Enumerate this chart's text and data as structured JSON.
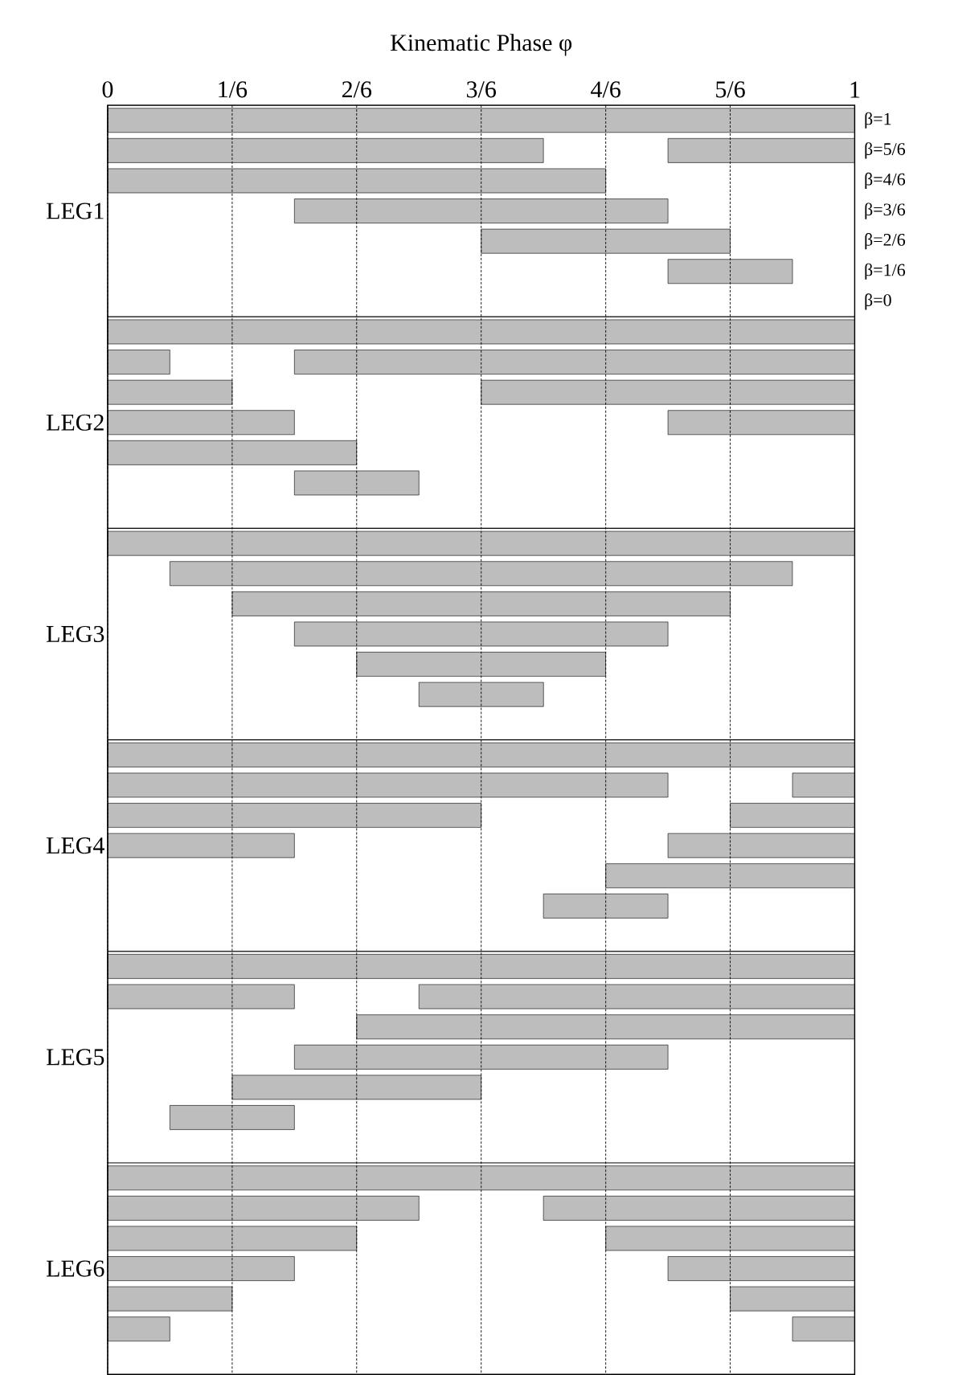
{
  "chart_data": {
    "type": "bar",
    "orientation": "horizontal",
    "xlabel": "Kinematic Phase φ",
    "grid": "x",
    "annotations": [
      "LEG1",
      "LEG2",
      "LEG3",
      "LEG4",
      "LEG5",
      "LEG6"
    ],
    "categories": [
      "β=1",
      "β=5/6",
      "β=4/6",
      "β=3/6",
      "β=2/6",
      "β=1/6",
      "β=0",
      null,
      null,
      null,
      null,
      null,
      null,
      null,
      null,
      null,
      null,
      null,
      null,
      null,
      null,
      null,
      null,
      null,
      null,
      null,
      null,
      null,
      null,
      null,
      null,
      null,
      null,
      null,
      null,
      null,
      null,
      null,
      null,
      null,
      null,
      null
    ],
    "xlim": [
      0,
      1
    ],
    "xticks": [
      0,
      {
        "value": 0.1667,
        "label": "1/6"
      },
      {
        "value": 0.3333,
        "label": "2/6"
      },
      {
        "value": 0.5,
        "label": "3/6"
      },
      {
        "value": 0.6667,
        "label": "4/6"
      },
      {
        "value": 0.8333,
        "label": "5/6"
      },
      1
    ],
    "series": [
      {
        "color": "#bdbdbd",
        "base": [
          0,
          0.75,
          0,
          0.25,
          0.5,
          0.75,
          null,
          0,
          0.25,
          0.5,
          0.75,
          0,
          0.25,
          null,
          0,
          0.0833,
          0.1667,
          0.25,
          0.3333,
          0.4167,
          null,
          0,
          0.9167,
          0.8333,
          0.75,
          0.6667,
          0.5833,
          null,
          0,
          0.4167,
          0.3333,
          0.25,
          0.1667,
          0.0833,
          null,
          0,
          0.5833,
          0.6667,
          0.75,
          0.8333,
          0.9167,
          null
        ],
        "values": [
          1,
          0.25,
          0.6667,
          0.5,
          0.3333,
          0.1667,
          null,
          1,
          0.75,
          0.5,
          0.25,
          0.3333,
          0.1667,
          null,
          1,
          0.8333,
          0.6667,
          0.5,
          0.3333,
          0.1667,
          null,
          1,
          0.0833,
          0.1667,
          0.25,
          0.3333,
          0.1667,
          null,
          1,
          0.5833,
          0.6667,
          0.5,
          0.3333,
          0.1667,
          null,
          1,
          0.4167,
          0.3333,
          0.25,
          0.1667,
          0.0833,
          null
        ]
      },
      {
        "color": "#bdbdbd",
        "base": [
          null,
          0,
          null,
          null,
          null,
          null,
          null,
          null,
          0,
          0,
          0,
          null,
          null,
          null,
          null,
          null,
          null,
          null,
          null,
          null,
          null,
          null,
          0,
          0,
          0,
          null,
          null,
          null,
          null,
          0,
          null,
          null,
          null,
          null,
          null,
          null,
          0,
          0,
          0,
          0,
          0,
          null
        ],
        "values": [
          null,
          0.5833,
          null,
          null,
          null,
          null,
          null,
          null,
          0.0833,
          0.1667,
          0.25,
          null,
          null,
          null,
          null,
          null,
          null,
          null,
          null,
          null,
          null,
          null,
          0.75,
          0.5,
          0.25,
          null,
          null,
          null,
          null,
          0.25,
          null,
          null,
          null,
          null,
          null,
          null,
          0.4167,
          0.3333,
          0.25,
          0.1667,
          0.0833,
          null
        ]
      }
    ]
  }
}
